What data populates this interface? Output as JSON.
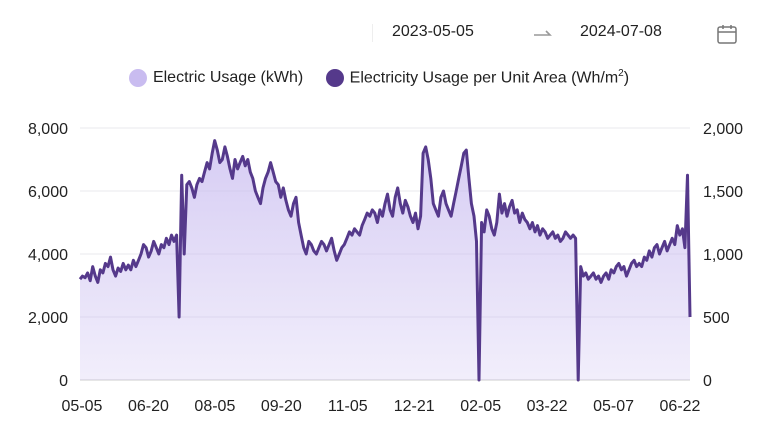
{
  "date_range": {
    "start": "2023-05-05",
    "end": "2024-07-08",
    "arrow_icon": "arrow-right-icon",
    "calendar_icon": "calendar-icon"
  },
  "legend": [
    {
      "name": "Electric Usage (kWh)",
      "color": "#c9bcf0"
    },
    {
      "name": "Electricity Usage per Unit Area (Wh/m",
      "sup": "2",
      "suffix": ")",
      "color": "#55398b"
    }
  ],
  "chart_data": {
    "type": "area",
    "title": "",
    "xlabel": "",
    "ylabel": "",
    "ylim_left": [
      0,
      8000
    ],
    "ylim_right": [
      0,
      2000
    ],
    "y_ticks_left": [
      "0",
      "2,000",
      "4,000",
      "6,000",
      "8,000"
    ],
    "y_ticks_right": [
      "0",
      "500",
      "1,000",
      "1,500",
      "2,000"
    ],
    "x_ticks": [
      "05-05",
      "06-20",
      "08-05",
      "09-20",
      "11-05",
      "12-21",
      "02-05",
      "03-22",
      "05-07",
      "06-22"
    ],
    "grid": true,
    "legend_position": "top-center",
    "series": [
      {
        "name": "Electric Usage (kWh)",
        "color": "#c9bcf0",
        "values": [
          3200,
          3300,
          3250,
          3400,
          3150,
          3600,
          3300,
          3100,
          3500,
          3400,
          3700,
          3600,
          3900,
          3500,
          3300,
          3550,
          3450,
          3700,
          3500,
          3650,
          3500,
          3800,
          3600,
          3800,
          4000,
          4300,
          4200,
          3900,
          4100,
          4400,
          4200,
          4000,
          4300,
          4200,
          4500,
          4300,
          4600,
          4400,
          4600,
          2000,
          6500,
          4000,
          6200,
          6300,
          6100,
          5800,
          6200,
          6400,
          6300,
          6600,
          6900,
          6700,
          7200,
          7600,
          7300,
          6900,
          7000,
          7400,
          7100,
          6700,
          6400,
          7000,
          6700,
          6900,
          7100,
          6800,
          7000,
          6600,
          6400,
          6000,
          5800,
          5600,
          6100,
          6400,
          6600,
          6900,
          6600,
          6300,
          6200,
          5800,
          6100,
          5700,
          5400,
          5200,
          5600,
          5800,
          5000,
          4600,
          4200,
          4000,
          4400,
          4300,
          4100,
          4000,
          4200,
          4400,
          4300,
          4100,
          4300,
          4500,
          4100,
          3800,
          4000,
          4200,
          4300,
          4500,
          4700,
          4600,
          4800,
          4700,
          4600,
          4900,
          5100,
          5300,
          5200,
          5400,
          5300,
          5000,
          5400,
          5200,
          5600,
          5900,
          5400,
          5200,
          5800,
          6100,
          5600,
          5300,
          5700,
          5500,
          5200,
          5000,
          5300,
          4800,
          5200,
          7200,
          7400,
          7000,
          6400,
          5600,
          5400,
          5200,
          5800,
          6000,
          5600,
          5400,
          5200,
          5600,
          6000,
          6400,
          6800,
          7200,
          7300,
          6400,
          5600,
          5200,
          4400,
          0,
          5000,
          4700,
          5400,
          5200,
          4800,
          4600,
          5000,
          5900,
          5300,
          5600,
          5200,
          5500,
          5700,
          5300,
          5400,
          5000,
          5300,
          5100,
          5000,
          4800,
          5000,
          4700,
          4900,
          4600,
          4800,
          4700,
          4500,
          4600,
          4700,
          4500,
          4600,
          4400,
          4500,
          4700,
          4600,
          4500,
          4600,
          4500,
          0,
          3600,
          3300,
          3400,
          3200,
          3300,
          3400,
          3200,
          3300,
          3100,
          3300,
          3400,
          3200,
          3500,
          3400,
          3600,
          3700,
          3500,
          3600,
          3300,
          3500,
          3700,
          3800,
          3600,
          3700,
          3600,
          3900,
          3800,
          4100,
          3900,
          4200,
          4300,
          4000,
          4200,
          4400,
          4100,
          4300,
          4500,
          4300,
          4900,
          4600,
          4800,
          4200,
          6500,
          2000
        ]
      },
      {
        "name": "Electricity Usage per Unit Area (Wh/m2)",
        "color": "#55398b",
        "axis": "right",
        "values": [
          800,
          825,
          812,
          850,
          788,
          900,
          825,
          775,
          875,
          850,
          925,
          900,
          975,
          875,
          825,
          888,
          862,
          925,
          875,
          912,
          875,
          950,
          900,
          950,
          1000,
          1075,
          1050,
          975,
          1025,
          1100,
          1050,
          1000,
          1075,
          1050,
          1125,
          1075,
          1150,
          1100,
          1150,
          500,
          1625,
          1000,
          1550,
          1575,
          1525,
          1450,
          1550,
          1600,
          1575,
          1650,
          1725,
          1675,
          1800,
          1900,
          1825,
          1725,
          1750,
          1850,
          1775,
          1675,
          1600,
          1750,
          1675,
          1725,
          1775,
          1700,
          1750,
          1650,
          1600,
          1500,
          1450,
          1400,
          1525,
          1600,
          1650,
          1725,
          1650,
          1575,
          1550,
          1450,
          1525,
          1425,
          1350,
          1300,
          1400,
          1450,
          1250,
          1150,
          1050,
          1000,
          1100,
          1075,
          1025,
          1000,
          1050,
          1100,
          1075,
          1025,
          1075,
          1125,
          1025,
          950,
          1000,
          1050,
          1075,
          1125,
          1175,
          1150,
          1200,
          1175,
          1150,
          1225,
          1275,
          1325,
          1300,
          1350,
          1325,
          1250,
          1350,
          1300,
          1400,
          1475,
          1350,
          1300,
          1450,
          1525,
          1400,
          1325,
          1425,
          1375,
          1300,
          1250,
          1325,
          1200,
          1300,
          1800,
          1850,
          1750,
          1600,
          1400,
          1350,
          1300,
          1450,
          1500,
          1400,
          1350,
          1300,
          1400,
          1500,
          1600,
          1700,
          1800,
          1825,
          1600,
          1400,
          1300,
          1100,
          0,
          1250,
          1175,
          1350,
          1300,
          1200,
          1150,
          1250,
          1475,
          1325,
          1400,
          1300,
          1375,
          1425,
          1325,
          1350,
          1250,
          1325,
          1275,
          1250,
          1200,
          1250,
          1175,
          1225,
          1150,
          1200,
          1175,
          1125,
          1150,
          1175,
          1125,
          1150,
          1100,
          1125,
          1175,
          1150,
          1125,
          1150,
          1125,
          0,
          900,
          825,
          850,
          800,
          825,
          850,
          800,
          825,
          775,
          825,
          850,
          800,
          875,
          850,
          900,
          925,
          875,
          900,
          825,
          875,
          925,
          950,
          900,
          925,
          900,
          975,
          950,
          1025,
          975,
          1050,
          1075,
          1000,
          1050,
          1100,
          1025,
          1075,
          1125,
          1075,
          1225,
          1150,
          1200,
          1050,
          1625,
          500
        ]
      }
    ]
  }
}
